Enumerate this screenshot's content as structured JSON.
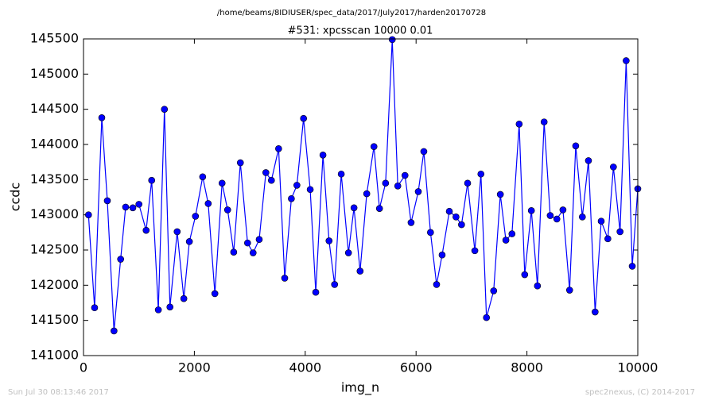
{
  "chart_data": {
    "type": "line",
    "suptitle": "/home/beams/8IDIUSER/spec_data/2017/July2017/harden20170728",
    "title": "#531: xpcsscan 10000 0.01",
    "xlabel": "img_n",
    "ylabel": "ccdc",
    "footer_left": "Sun Jul 30 08:13:46 2017",
    "footer_right": "spec2nexus, (C) 2014-2017",
    "xlim": [
      0,
      10000
    ],
    "xticks": [
      0,
      2000,
      4000,
      6000,
      8000,
      10000
    ],
    "ylim": [
      141000,
      145500
    ],
    "yticks": [
      141000,
      141500,
      142000,
      142500,
      143000,
      143500,
      144000,
      144500,
      145000,
      145500
    ],
    "grid": false,
    "series": [
      {
        "name": "ccdc",
        "color": "#0000ff",
        "marker": "circle",
        "x": [
          90,
          200,
          330,
          430,
          550,
          670,
          760,
          890,
          1000,
          1130,
          1230,
          1350,
          1460,
          1560,
          1690,
          1810,
          1910,
          2020,
          2150,
          2250,
          2370,
          2500,
          2600,
          2710,
          2830,
          2960,
          3060,
          3170,
          3290,
          3390,
          3520,
          3630,
          3750,
          3850,
          3970,
          4090,
          4190,
          4320,
          4430,
          4530,
          4650,
          4780,
          4880,
          4990,
          5110,
          5240,
          5340,
          5450,
          5570,
          5670,
          5800,
          5910,
          6040,
          6140,
          6260,
          6370,
          6470,
          6600,
          6720,
          6820,
          6930,
          7060,
          7170,
          7270,
          7400,
          7520,
          7620,
          7730,
          7860,
          7960,
          8080,
          8190,
          8310,
          8420,
          8540,
          8650,
          8770,
          8880,
          9000,
          9110,
          9230,
          9340,
          9460,
          9560,
          9680,
          9790,
          9900,
          10000
        ],
        "values": [
          143000,
          141680,
          144380,
          143200,
          141350,
          142370,
          143110,
          143100,
          143150,
          142780,
          143490,
          141650,
          144500,
          141690,
          142760,
          141810,
          142620,
          142980,
          143540,
          143160,
          141880,
          143450,
          143070,
          142470,
          143740,
          142600,
          142460,
          142650,
          143600,
          143490,
          143940,
          142100,
          143230,
          143420,
          144370,
          143360,
          141900,
          143850,
          142630,
          142010,
          143580,
          142460,
          143100,
          142200,
          143300,
          143970,
          143090,
          143450,
          145490,
          143410,
          143560,
          142890,
          143330,
          143900,
          142750,
          142010,
          142430,
          143050,
          142970,
          142860,
          143450,
          142490,
          143580,
          141540,
          141920,
          143290,
          142640,
          142730,
          144290,
          142150,
          143060,
          141990,
          144320,
          142990,
          142940,
          143070,
          141930,
          143980,
          142970,
          143770,
          141620,
          142910,
          142660,
          143680,
          142760,
          145190,
          142270,
          143370
        ]
      }
    ]
  }
}
